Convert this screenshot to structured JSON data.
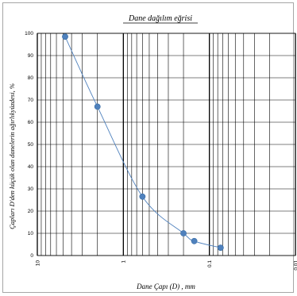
{
  "chart_data": {
    "type": "scatter",
    "title": "Dane dağılım eğrisi",
    "xlabel": "Dane Çapı (D) , mm",
    "ylabel": "Çapları D'den küçük olan danelerin ağırlıkyüzdesi, %",
    "x_scale": "log",
    "x_reversed": true,
    "xlim": [
      10,
      0.01
    ],
    "ylim": [
      0,
      100
    ],
    "x_ticks": [
      {
        "value": 10,
        "label": "10"
      },
      {
        "value": 1,
        "label": "1"
      },
      {
        "value": 0.1,
        "label": "0.1"
      },
      {
        "value": 0.01,
        "label": "0.01"
      }
    ],
    "y_ticks": [
      0,
      10,
      20,
      30,
      40,
      50,
      60,
      70,
      80,
      90,
      100
    ],
    "grid": true,
    "legend": "none",
    "colors": {
      "marker": "#4f81bd",
      "curve": "#4f81bd",
      "grid": "#000000"
    },
    "series": [
      {
        "x": [
          4.75,
          2.0,
          0.6,
          0.2,
          0.15,
          0.074
        ],
        "values": [
          98.5,
          67,
          26.5,
          10,
          6.5,
          3.5
        ]
      }
    ]
  }
}
